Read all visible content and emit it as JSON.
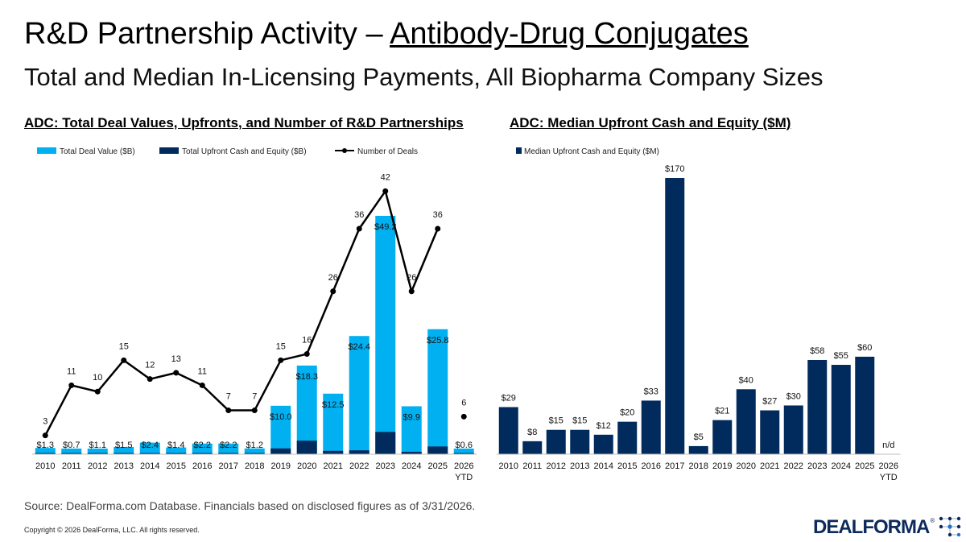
{
  "page": {
    "title_plain": "R&D Partnership Activity – ",
    "title_underlined": "Antibody-Drug Conjugates",
    "subtitle": "Total and Median In-Licensing Payments, All Biopharma Company Sizes",
    "source": "Source: DealForma.com Database. Financials based on disclosed figures as of 3/31/2026.",
    "copyright": "Copyright © 2026 DealForma, LLC. All rights reserved.",
    "logo_text": "DEALFORMA",
    "logo_tm": "®"
  },
  "colors": {
    "light_blue": "#00b0f0",
    "dark_navy": "#002b5c",
    "line": "#000000"
  },
  "chart_data": [
    {
      "type": "bar",
      "title": "ADC: Total Deal Values, Upfronts, and Number of R&D Partnerships",
      "categories": [
        "2010",
        "2011",
        "2012",
        "2013",
        "2014",
        "2015",
        "2016",
        "2017",
        "2018",
        "2019",
        "2020",
        "2021",
        "2022",
        "2023",
        "2024",
        "2025",
        "2026"
      ],
      "category_sublabels": [
        "",
        "",
        "",
        "",
        "",
        "",
        "",
        "",
        "",
        "",
        "",
        "",
        "",
        "",
        "",
        "",
        "YTD"
      ],
      "series": [
        {
          "name": "Total Deal Value ($B)",
          "kind": "bar",
          "values": [
            1.3,
            0.7,
            1.1,
            1.5,
            2.4,
            1.4,
            2.2,
            2.2,
            1.2,
            10.0,
            18.3,
            12.5,
            24.4,
            49.2,
            9.9,
            25.8,
            0.6
          ],
          "labels": [
            "$1.3",
            "$0.7",
            "$1.1",
            "$1.5",
            "$2.4",
            "$1.4",
            "$2.2",
            "$2.2",
            "$1.2",
            "$10.0",
            "$18.3",
            "$12.5",
            "$24.4",
            "$49.2",
            "$9.9",
            "$25.8",
            "$0.6"
          ]
        },
        {
          "name": "Total Upfront Cash and Equity ($B)",
          "kind": "bar",
          "values": [
            0.1,
            0.05,
            0.1,
            0.1,
            0.1,
            0.1,
            0.2,
            0.2,
            0.1,
            1.2,
            2.8,
            0.7,
            0.8,
            4.6,
            0.5,
            1.6,
            0.1
          ]
        },
        {
          "name": "Number of Deals",
          "kind": "line",
          "values": [
            3,
            11,
            10,
            15,
            12,
            13,
            11,
            7,
            7,
            15,
            16,
            26,
            36,
            42,
            26,
            36,
            6
          ]
        }
      ],
      "bar_ylim": [
        0,
        50
      ],
      "line_ylim": [
        0,
        45
      ],
      "legend_position": "top",
      "grid": false
    },
    {
      "type": "bar",
      "title": "ADC: Median Upfront Cash and Equity ($M)",
      "categories": [
        "2010",
        "2011",
        "2012",
        "2013",
        "2014",
        "2015",
        "2016",
        "2017",
        "2018",
        "2019",
        "2020",
        "2021",
        "2022",
        "2023",
        "2024",
        "2025",
        "2026"
      ],
      "category_sublabels": [
        "",
        "",
        "",
        "",
        "",
        "",
        "",
        "",
        "",
        "",
        "",
        "",
        "",
        "",
        "",
        "",
        "YTD"
      ],
      "series": [
        {
          "name": "Median Upfront Cash and Equity ($M)",
          "values": [
            29,
            8,
            15,
            15,
            12,
            20,
            33,
            170,
            5,
            21,
            40,
            27,
            30,
            58,
            55,
            60,
            null
          ],
          "labels": [
            "$29",
            "$8",
            "$15",
            "$15",
            "$12",
            "$20",
            "$33",
            "$170",
            "$5",
            "$21",
            "$40",
            "$27",
            "$30",
            "$58",
            "$55",
            "$60",
            "n/d"
          ]
        }
      ],
      "ylim": [
        0,
        170
      ],
      "legend_position": "top-left",
      "grid": false
    }
  ]
}
